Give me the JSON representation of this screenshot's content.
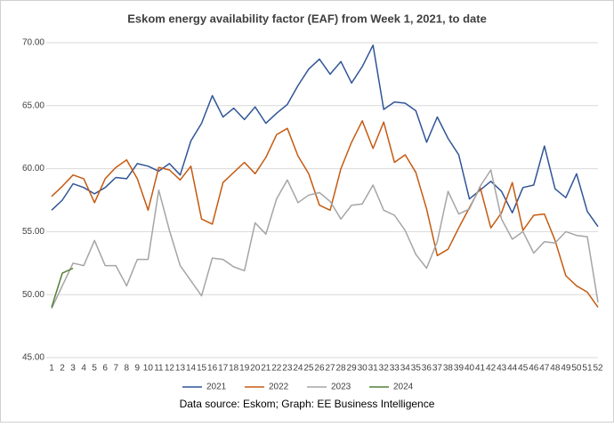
{
  "chart_data": {
    "type": "line",
    "title": "Eskom energy availability factor (EAF) from Week 1, 2021, to date",
    "source": "Data source: Eskom; Graph: EE Business Intelligence",
    "categories": [
      1,
      2,
      3,
      4,
      5,
      6,
      7,
      8,
      9,
      10,
      11,
      12,
      13,
      14,
      15,
      16,
      17,
      18,
      19,
      20,
      21,
      22,
      23,
      24,
      25,
      26,
      27,
      28,
      29,
      30,
      31,
      32,
      33,
      34,
      35,
      36,
      37,
      38,
      39,
      40,
      41,
      42,
      43,
      44,
      45,
      46,
      47,
      48,
      49,
      50,
      51,
      52
    ],
    "ylim": [
      45,
      70
    ],
    "yticks": [
      {
        "value": 45,
        "label": "45.00"
      },
      {
        "value": 50,
        "label": "50.00"
      },
      {
        "value": 55,
        "label": "55.00"
      },
      {
        "value": 60,
        "label": "60.00"
      },
      {
        "value": 65,
        "label": "65.00"
      },
      {
        "value": 70,
        "label": "70.00"
      }
    ],
    "grid": true,
    "legend": "bottom",
    "series": [
      {
        "name": "2021",
        "color": "#2f5597",
        "values": [
          56.7,
          57.5,
          58.8,
          58.5,
          58.0,
          58.5,
          59.3,
          59.2,
          60.4,
          60.2,
          59.8,
          60.4,
          59.5,
          62.2,
          63.6,
          65.8,
          64.1,
          64.8,
          63.9,
          64.9,
          63.6,
          64.4,
          65.1,
          66.6,
          67.9,
          68.7,
          67.5,
          68.5,
          66.8,
          68.1,
          69.8,
          64.7,
          65.3,
          65.2,
          64.6,
          62.1,
          64.1,
          62.4,
          61.1,
          57.6,
          58.3,
          59.0,
          58.2,
          56.5,
          58.5,
          58.7,
          61.8,
          58.4,
          57.7,
          59.6,
          56.6,
          55.4
        ]
      },
      {
        "name": "2022",
        "color": "#c55a11",
        "values": [
          57.8,
          58.6,
          59.5,
          59.2,
          57.3,
          59.2,
          60.1,
          60.7,
          59.2,
          56.7,
          60.1,
          59.9,
          59.1,
          60.2,
          56.0,
          55.6,
          58.9,
          59.7,
          60.5,
          59.6,
          60.9,
          62.7,
          63.2,
          61.0,
          59.6,
          57.1,
          56.7,
          60.0,
          62.1,
          63.8,
          61.6,
          63.7,
          60.5,
          61.1,
          59.7,
          56.8,
          53.1,
          53.6,
          55.3,
          56.9,
          58.5,
          55.3,
          56.5,
          58.9,
          55.1,
          56.3,
          56.4,
          54.3,
          51.5,
          50.7,
          50.2,
          49.0
        ]
      },
      {
        "name": "2023",
        "color": "#a5a5a5",
        "values": [
          48.9,
          50.7,
          52.5,
          52.3,
          54.3,
          52.3,
          52.3,
          50.7,
          52.8,
          52.8,
          58.3,
          55.1,
          52.3,
          51.1,
          49.9,
          52.9,
          52.8,
          52.2,
          51.9,
          55.7,
          54.8,
          57.6,
          59.1,
          57.3,
          57.9,
          58.1,
          57.4,
          56.0,
          57.1,
          57.2,
          58.7,
          56.7,
          56.3,
          55.1,
          53.2,
          52.1,
          54.2,
          58.2,
          56.4,
          56.8,
          58.6,
          59.9,
          56.0,
          54.4,
          55.0,
          53.3,
          54.2,
          54.1,
          55.0,
          54.7,
          54.6,
          49.4
        ]
      },
      {
        "name": "2024",
        "color": "#548235",
        "values": [
          49.0,
          51.7,
          52.1,
          null,
          null,
          null,
          null,
          null,
          null,
          null,
          null,
          null,
          null,
          null,
          null,
          null,
          null,
          null,
          null,
          null,
          null,
          null,
          null,
          null,
          null,
          null,
          null,
          null,
          null,
          null,
          null,
          null,
          null,
          null,
          null,
          null,
          null,
          null,
          null,
          null,
          null,
          null,
          null,
          null,
          null,
          null,
          null,
          null,
          null,
          null,
          null,
          null
        ]
      }
    ]
  }
}
